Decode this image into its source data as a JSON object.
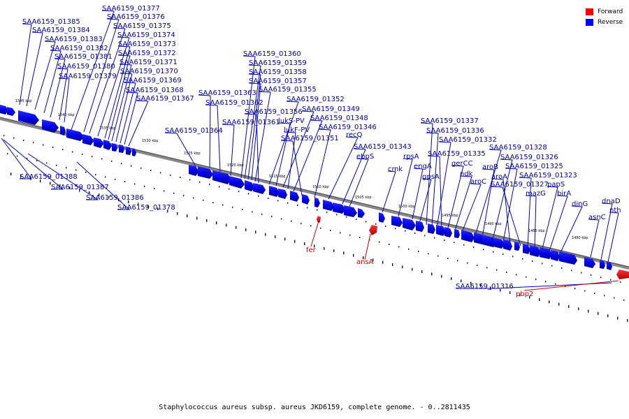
{
  "legend": [
    {
      "label": "Forward",
      "color": "#ff0000"
    },
    {
      "label": "Reverse",
      "color": "#0000ff"
    }
  ],
  "caption": "Staphylococcus aureus subsp. aureus JKD6159, complete genome. - 0..2811435",
  "ticks": [
    "1545 kbp",
    "1540 kbp",
    "1535 kbp",
    "1530 kbp",
    "1525 kbp",
    "1520 kbp",
    "1515 kbp",
    "1510 kbp",
    "1505 kbp",
    "1500 kbp",
    "1495 kbp",
    "1490 kbp",
    "1485 kbp",
    "1480 kbp"
  ],
  "reverse_labels": [
    "SAA6159_01385",
    "SAA6159_01384",
    "SAA6159_01383",
    "SAA6159_01382",
    "SAA6159_01381",
    "SAA6159_01380",
    "SAA6159_01379",
    "SAA6159_01377",
    "SAA6159_01376",
    "SAA6159_01375",
    "SAA6159_01374",
    "SAA6159_01373",
    "SAA6159_01372",
    "SAA6159_01371",
    "SAA6159_01370",
    "SAA6159_01369",
    "SAA6159_01368",
    "SAA6159_01367",
    "SAA6159_01364",
    "SAA6159_01363",
    "SAA6159_01362",
    "SAA6159_01361",
    "SAA6159_01360",
    "SAA6159_01359",
    "SAA6159_01358",
    "SAA6159_01357",
    "SAA6159_01355",
    "SAA6159_01356",
    "SAA6159_01352",
    "lukS-PV",
    "SAA6159_01349",
    "lukF-PV",
    "SAA6159_01348",
    "SAA6159_01351",
    "recQ",
    "SAA6159_01346",
    "SAA6159_01343",
    "ebpS",
    "cmk",
    "rpsA",
    "engA",
    "gpsA",
    "SAA6159_01337",
    "SAA6159_01336",
    "SAA6159_01332",
    "SAA6159_01335",
    "gerCC",
    "ndk",
    "aroC",
    "SAA6159_01328",
    "aroB",
    "SAA6159_01326",
    "SAA6159_01325",
    "aroA",
    "SAA6159_01327",
    "SAA6159_01323",
    "mazG",
    "papS",
    "birA",
    "dinG",
    "dnaD",
    "nth",
    "asnC",
    "SAA6159_01388",
    "SAA6159_01387",
    "SAA6159_01386",
    "SAA6159_01378",
    "SAA6159_01316"
  ],
  "forward_labels": [
    "fer",
    "ansA",
    "pbp2"
  ]
}
